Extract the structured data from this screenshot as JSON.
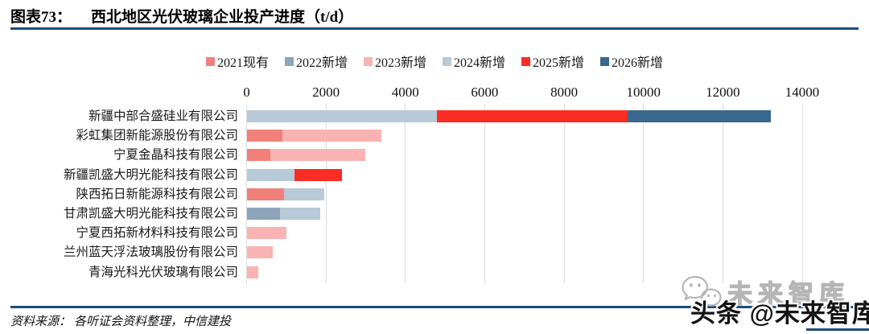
{
  "header": {
    "figure_label": "图表73：",
    "title": "西北地区光伏玻璃企业投产进度（t/d）"
  },
  "footer": {
    "source_label": "资料来源：",
    "source_text": "各听证会资料整理，中信建投"
  },
  "watermarks": {
    "gray_text": "未来智库",
    "dark_text": "头条 @未来智库",
    "icon": "wechat-icon"
  },
  "colors": {
    "rule_blue": "#1c4d7c",
    "gridline": "#dcdcdc",
    "watermark_gray": "#b5b5b5",
    "watermark_dark": "#141414"
  },
  "chart_data": {
    "type": "bar",
    "orientation": "horizontal",
    "stacked": true,
    "title": "西北地区光伏玻璃企业投产进度（t/d）",
    "unit": "t/d",
    "xlabel": "",
    "ylabel": "",
    "xlim": [
      0,
      14000
    ],
    "x_ticks": [
      0,
      2000,
      4000,
      6000,
      8000,
      10000,
      12000,
      14000
    ],
    "grid": true,
    "legend_position": "top",
    "categories": [
      "新疆中部合盛硅业有限公司",
      "彩虹集团新能源股份有限公司",
      "宁夏金晶科技有限公司",
      "新疆凯盛大明光能科技有限公司",
      "陕西拓日新能源科技有限公司",
      "甘肃凯盛大明光能科技有限公司",
      "宁夏西拓新材料科技有限公司",
      "兰州蓝天浮法玻璃股份有限公司",
      "青海光科光伏玻璃有限公司"
    ],
    "series": [
      {
        "name": "2021现有",
        "color": "#f1807a",
        "values": [
          0,
          900,
          600,
          0,
          950,
          0,
          0,
          0,
          0
        ]
      },
      {
        "name": "2022新增",
        "color": "#8ca5ba",
        "values": [
          0,
          0,
          0,
          0,
          0,
          850,
          0,
          0,
          0
        ]
      },
      {
        "name": "2023新增",
        "color": "#f9b3b2",
        "values": [
          0,
          2500,
          2400,
          0,
          0,
          0,
          1000,
          650,
          300
        ]
      },
      {
        "name": "2024新增",
        "color": "#b8cad7",
        "values": [
          4800,
          0,
          0,
          1200,
          1000,
          1000,
          0,
          0,
          0
        ]
      },
      {
        "name": "2025新增",
        "color": "#fc2d24",
        "values": [
          4800,
          0,
          0,
          1200,
          0,
          0,
          0,
          0,
          0
        ]
      },
      {
        "name": "2026新增",
        "color": "#38688e",
        "values": [
          3600,
          0,
          0,
          0,
          0,
          0,
          0,
          0,
          0
        ]
      }
    ]
  }
}
